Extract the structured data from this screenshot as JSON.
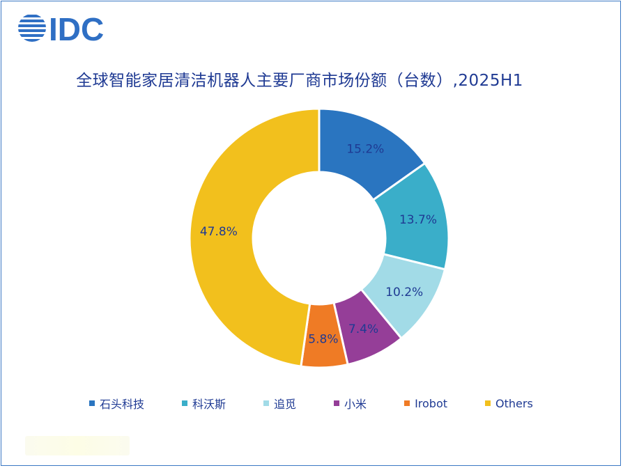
{
  "logo": {
    "text": "IDC",
    "color": "#2f6fc4"
  },
  "chart_data": {
    "type": "pie",
    "variant": "donut",
    "title": "全球智能家居清洁机器人主要厂商市场份额（台数）,2025H1",
    "series": [
      {
        "name": "石头科技",
        "value": 15.2,
        "label": "15.2%",
        "color": "#2a75c0"
      },
      {
        "name": "科沃斯",
        "value": 13.7,
        "label": "13.7%",
        "color": "#3aaec9"
      },
      {
        "name": "追觅",
        "value": 10.2,
        "label": "10.2%",
        "color": "#a2dbe7"
      },
      {
        "name": "小米",
        "value": 7.4,
        "label": "7.4%",
        "color": "#953e98"
      },
      {
        "name": "Irobot",
        "value": 5.8,
        "label": "5.8%",
        "color": "#ef7b25"
      },
      {
        "name": "Others",
        "value": 47.8,
        "label": "47.8%",
        "color": "#f2c01d"
      }
    ],
    "legend_position": "bottom"
  },
  "colors": {
    "title": "#1f3a93",
    "label": "#1f3a93",
    "frame": "#3b78c4"
  }
}
